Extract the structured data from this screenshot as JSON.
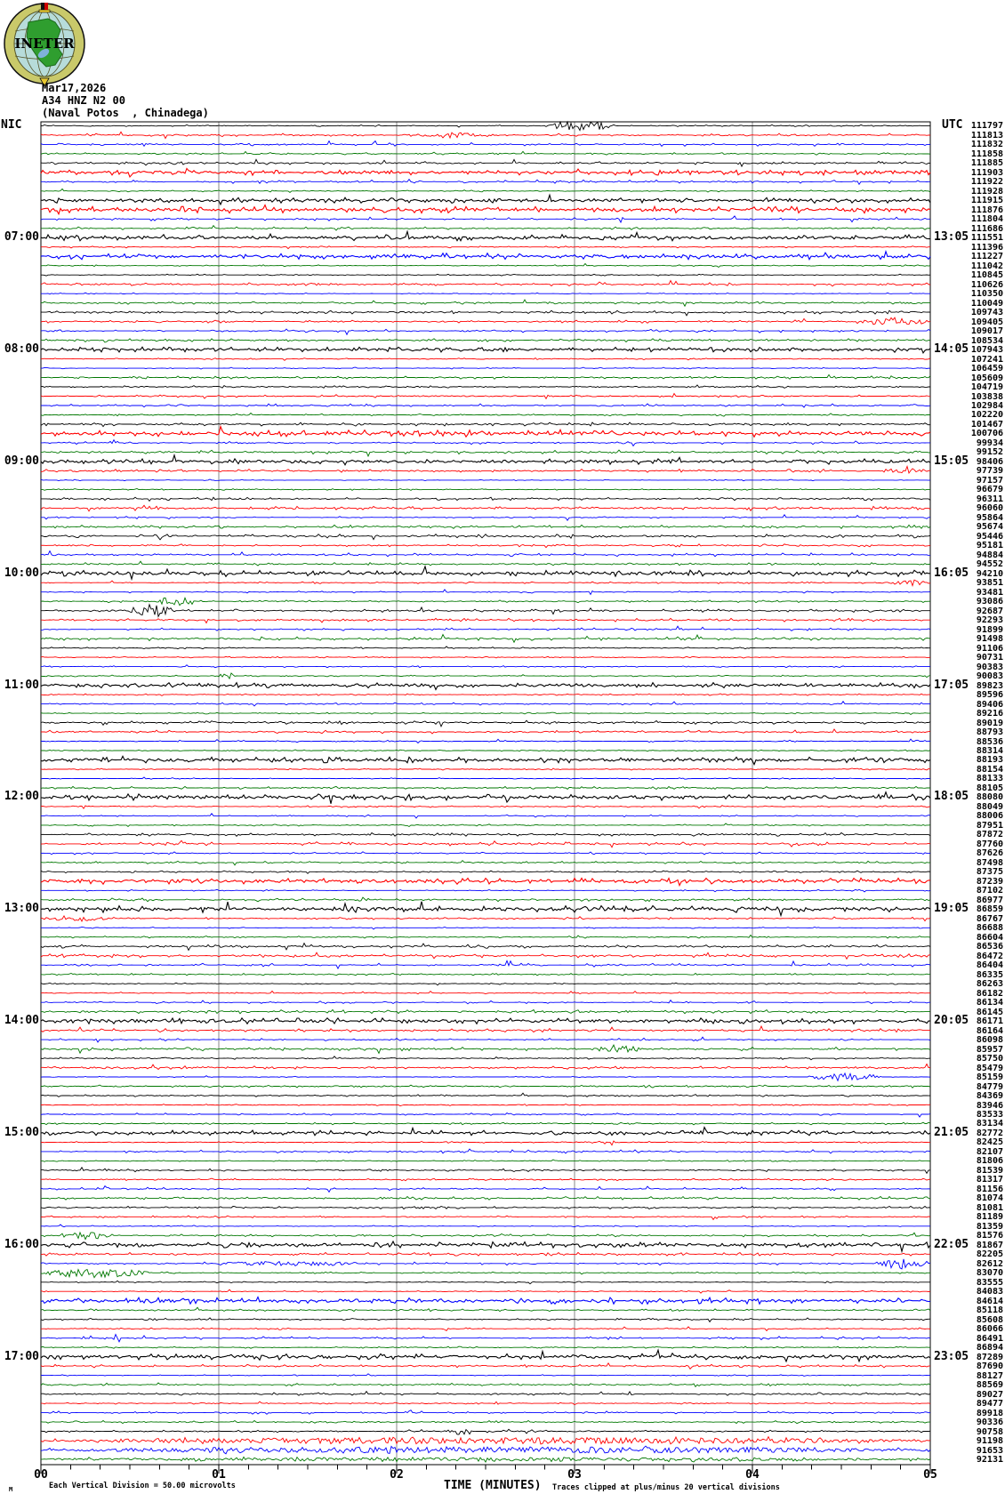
{
  "logo": {
    "text": "INETER"
  },
  "header": {
    "date": "Mar17,2026",
    "station": "A34 HNZ N2 00",
    "location": "(Naval Potos  , Chinadega)"
  },
  "plot": {
    "left_axis_label": "NIC",
    "right_axis_label": "UTC",
    "left_hour_labels": [
      "07:00",
      "08:00",
      "09:00",
      "10:00",
      "11:00",
      "12:00",
      "13:00",
      "14:00",
      "15:00",
      "16:00",
      "17:00"
    ],
    "right_hour_labels": [
      "13:05",
      "14:05",
      "15:05",
      "16:05",
      "17:05",
      "18:05",
      "19:05",
      "20:05",
      "21:05",
      "22:05",
      "23:05"
    ],
    "x_tick_labels": [
      "00",
      "01",
      "02",
      "03",
      "04",
      "05"
    ],
    "x_axis_title": "TIME (MINUTES)"
  },
  "footer": {
    "scale_note": "Each Vertical Division =   50.00 microvolts",
    "clip_note": "Traces clipped at plus/minus 20 vertical divisions",
    "corner_mark": "M"
  },
  "colors": {
    "trace_cycle": [
      "#000000",
      "#ff0000",
      "#0000ff",
      "#007700"
    ],
    "grid": "#8a8a8a",
    "border": "#000000",
    "logo_ring": "#c9c96a",
    "logo_sea": "#b7dcda",
    "logo_land": "#2f9e2f",
    "logo_flag_red": "#cc0000",
    "logo_gold": "#e8c830"
  },
  "chart_data": {
    "type": "line",
    "title": "Helicorder seismogram A34 HNZ N2 00 (Naval Potos, Chinadega) Mar17,2026",
    "xlabel": "TIME (MINUTES)",
    "x_range": [
      0,
      5
    ],
    "lines": 144,
    "minutes_per_line": 5,
    "grid": true,
    "line_color_cycle": [
      "black",
      "red",
      "blue",
      "green"
    ],
    "per_line_values": [
      111797,
      111813,
      111832,
      111858,
      111885,
      111903,
      111922,
      111928,
      111915,
      111876,
      111804,
      111686,
      111551,
      111396,
      111227,
      111042,
      110845,
      110626,
      110350,
      110049,
      109743,
      109405,
      109017,
      108534,
      107943,
      107241,
      106459,
      105609,
      104719,
      103838,
      102984,
      102220,
      101467,
      100706,
      99934,
      99152,
      98406,
      97739,
      97157,
      96679,
      96311,
      96060,
      95864,
      95674,
      95446,
      95181,
      94884,
      94552,
      94210,
      93851,
      93481,
      93086,
      92687,
      92293,
      91899,
      91498,
      91106,
      90731,
      90383,
      90083,
      89823,
      89596,
      89406,
      89216,
      89019,
      88793,
      88536,
      88314,
      88193,
      88154,
      88133,
      88105,
      88080,
      88049,
      88006,
      87951,
      87872,
      87760,
      87626,
      87498,
      87375,
      87239,
      87102,
      86977,
      86859,
      86767,
      86688,
      86604,
      86536,
      86472,
      86404,
      86335,
      86263,
      86182,
      86134,
      86145,
      86171,
      86164,
      86098,
      85957,
      85750,
      85479,
      85159,
      84779,
      84369,
      83946,
      83533,
      83134,
      82772,
      82425,
      82107,
      81806,
      81539,
      81317,
      81156,
      81074,
      81081,
      81189,
      81359,
      81576,
      81867,
      82205,
      82612,
      83070,
      83555,
      84083,
      84614,
      85118,
      85608,
      86066,
      86491,
      86894,
      87289,
      87690,
      88127,
      88569,
      89027,
      89477,
      89918,
      90336,
      90758,
      91198,
      91653,
      92131
    ],
    "hour_label_lines": [
      13,
      25,
      37,
      49,
      61,
      73,
      85,
      97,
      109,
      121,
      133
    ],
    "emphasized_lines": [
      6,
      9,
      10,
      13,
      15,
      25,
      34,
      37,
      49,
      61,
      69,
      73,
      82,
      85,
      97,
      109,
      121,
      127,
      133
    ],
    "events": [
      {
        "line": 1,
        "start_min": 2.85,
        "end_min": 3.22,
        "amp": 5.5
      },
      {
        "line": 2,
        "start_min": 2.12,
        "end_min": 2.5,
        "amp": 3
      },
      {
        "line": 22,
        "start_min": 4.6,
        "end_min": 5.0,
        "amp": 4.5
      },
      {
        "line": 38,
        "start_min": 4.72,
        "end_min": 5.0,
        "amp": 3.5
      },
      {
        "line": 50,
        "start_min": 4.77,
        "end_min": 5.0,
        "amp": 3
      },
      {
        "line": 52,
        "start_min": 0.65,
        "end_min": 0.87,
        "amp": 6
      },
      {
        "line": 53,
        "start_min": 0.5,
        "end_min": 0.75,
        "amp": 7
      },
      {
        "line": 60,
        "start_min": 1.0,
        "end_min": 1.09,
        "amp": 4
      },
      {
        "line": 86,
        "start_min": 0.02,
        "end_min": 0.42,
        "amp": 2.5
      },
      {
        "line": 100,
        "start_min": 3.12,
        "end_min": 3.37,
        "amp": 5
      },
      {
        "line": 103,
        "start_min": 4.32,
        "end_min": 4.72,
        "amp": 4
      },
      {
        "line": 110,
        "start_min": 3.06,
        "end_min": 3.25,
        "amp": 4,
        "style": "spikes"
      },
      {
        "line": 120,
        "start_min": 0.1,
        "end_min": 0.4,
        "amp": 4
      },
      {
        "line": 123,
        "start_min": 1.0,
        "end_min": 1.85,
        "amp": 2.2
      },
      {
        "line": 123,
        "start_min": 4.7,
        "end_min": 5.0,
        "amp": 6
      },
      {
        "line": 124,
        "start_min": 0.0,
        "end_min": 0.6,
        "amp": 5
      },
      {
        "line": 141,
        "start_min": 2.05,
        "end_min": 2.82,
        "amp": 4,
        "style": "spikes"
      },
      {
        "line": 142,
        "start_min": 0.0,
        "end_min": 5.0,
        "amp": 3.2
      },
      {
        "line": 143,
        "start_min": 0.0,
        "end_min": 5.0,
        "amp": 3.2
      },
      {
        "line": 144,
        "start_min": 0.0,
        "end_min": 5.0,
        "amp": 1.8
      }
    ]
  }
}
